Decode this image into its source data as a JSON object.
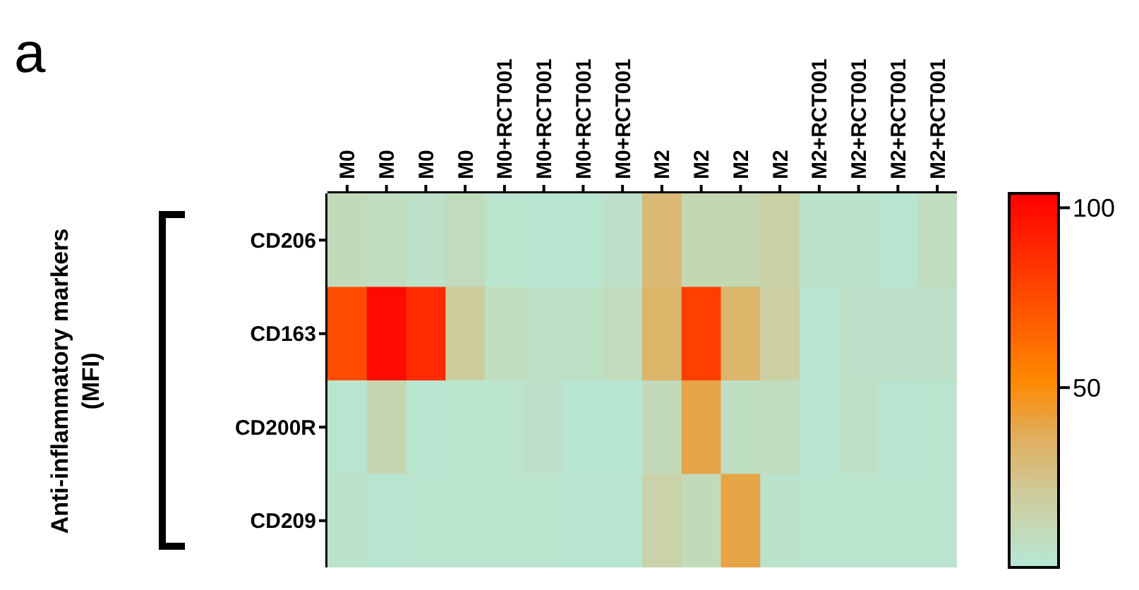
{
  "chart_data": {
    "type": "heatmap",
    "annotations": [
      "a",
      "Anti-inflammatory markers\n(MFI)"
    ],
    "categories": [
      "M0",
      "M0",
      "M0",
      "M0",
      "M0+RCT001",
      "M0+RCT001",
      "M0+RCT001",
      "M0+RCT001",
      "M2",
      "M2",
      "M2",
      "M2",
      "M2+RCT001",
      "M2+RCT001",
      "M2+RCT001",
      "M2+RCT001"
    ],
    "y_categories": [
      "CD206",
      "CD163",
      "CD200R",
      "CD209"
    ],
    "cells": [
      [
        10,
        8,
        5,
        9,
        3,
        2,
        2,
        5,
        30,
        12,
        12,
        17,
        4,
        4,
        2,
        8
      ],
      [
        75,
        100,
        88,
        20,
        8,
        6,
        6,
        9,
        33,
        80,
        33,
        18,
        2,
        5,
        5,
        5
      ],
      [
        2,
        13,
        2,
        3,
        3,
        5,
        1,
        1,
        10,
        40,
        7,
        8,
        2,
        6,
        2,
        3
      ],
      [
        4,
        2,
        3,
        3,
        3,
        3,
        2,
        2,
        16,
        10,
        40,
        4,
        3,
        3,
        3,
        3
      ]
    ],
    "clim": [
      0,
      104
    ],
    "cticks": [
      50,
      100
    ]
  }
}
